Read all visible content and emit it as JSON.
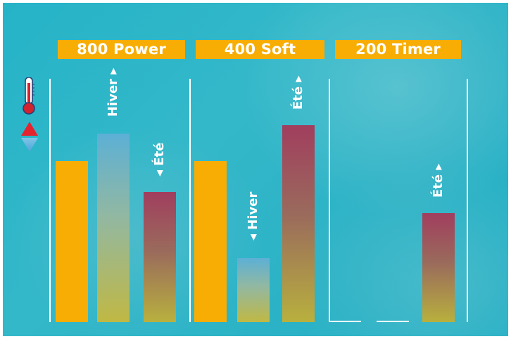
{
  "programs": [
    {
      "label": "800 Power"
    },
    {
      "label": "400 Soft"
    },
    {
      "label": "200 Timer"
    }
  ],
  "labels": {
    "winter": "Hiver",
    "summer": "Été"
  },
  "icons": [
    "thermometer-icon",
    "triangle-up-icon",
    "triangle-down-icon"
  ],
  "chart_data": {
    "type": "bar",
    "groups": [
      "800 Power",
      "400 Soft",
      "200 Timer"
    ],
    "series": [
      {
        "name": "",
        "values": [
          229,
          229,
          0
        ]
      },
      {
        "name": "Hiver",
        "values": [
          268,
          91,
          0
        ]
      },
      {
        "name": "Été",
        "values": [
          185,
          280,
          155
        ]
      }
    ],
    "colors": {
      "base": "#f7ad03",
      "winter_top": "#5cb0d6",
      "summer_top": "#a13e5e"
    }
  }
}
